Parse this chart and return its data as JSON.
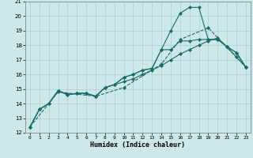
{
  "xlabel": "Humidex (Indice chaleur)",
  "bg_color": "#cce8e8",
  "grid_color": "#b0cccc",
  "line_color": "#1a6b6b",
  "xlim": [
    -0.5,
    23.5
  ],
  "ylim": [
    12,
    21
  ],
  "yticks": [
    12,
    13,
    14,
    15,
    16,
    17,
    18,
    19,
    20,
    21
  ],
  "xticks": [
    0,
    1,
    2,
    3,
    4,
    5,
    6,
    7,
    8,
    9,
    10,
    11,
    12,
    13,
    14,
    15,
    16,
    17,
    18,
    19,
    20,
    21,
    22,
    23
  ],
  "lines": [
    {
      "x": [
        0,
        3,
        7,
        10,
        14,
        16,
        19,
        23
      ],
      "y": [
        12.4,
        14.8,
        14.5,
        15.1,
        16.7,
        18.4,
        19.2,
        16.5
      ],
      "marker": "D",
      "linestyle": "--"
    },
    {
      "x": [
        0,
        1,
        2,
        3,
        4,
        5,
        6,
        7,
        8,
        9,
        10,
        11,
        12,
        13,
        14,
        15,
        16,
        17,
        18,
        19,
        20,
        21,
        22,
        23
      ],
      "y": [
        12.4,
        13.6,
        14.0,
        14.85,
        14.65,
        14.7,
        14.7,
        14.5,
        15.1,
        15.3,
        15.5,
        15.7,
        16.0,
        16.3,
        16.6,
        17.0,
        17.4,
        17.7,
        18.0,
        18.3,
        18.5,
        17.9,
        17.2,
        16.5
      ],
      "marker": "D",
      "linestyle": "-"
    },
    {
      "x": [
        0,
        1,
        2,
        3,
        4,
        5,
        6,
        7,
        8,
        9,
        10,
        11,
        12,
        13,
        14,
        15,
        16,
        17,
        18,
        19,
        20,
        21,
        22,
        23
      ],
      "y": [
        12.4,
        13.6,
        14.0,
        14.9,
        14.6,
        14.7,
        14.7,
        14.5,
        15.1,
        15.3,
        15.8,
        16.0,
        16.3,
        16.4,
        17.7,
        17.7,
        18.3,
        18.3,
        18.4,
        18.4,
        18.4,
        17.9,
        17.5,
        16.5
      ],
      "marker": "D",
      "linestyle": "-"
    },
    {
      "x": [
        0,
        1,
        2,
        3,
        4,
        5,
        6,
        7,
        8,
        9,
        10,
        11,
        12,
        13,
        14,
        15,
        16,
        17,
        18,
        19,
        20,
        21,
        22,
        23
      ],
      "y": [
        12.4,
        13.6,
        14.0,
        14.9,
        14.6,
        14.7,
        14.7,
        14.5,
        15.1,
        15.3,
        15.8,
        16.0,
        16.3,
        16.4,
        17.7,
        19.0,
        20.2,
        20.6,
        20.6,
        18.4,
        18.4,
        17.9,
        17.5,
        16.5
      ],
      "marker": "D",
      "linestyle": "-"
    }
  ]
}
